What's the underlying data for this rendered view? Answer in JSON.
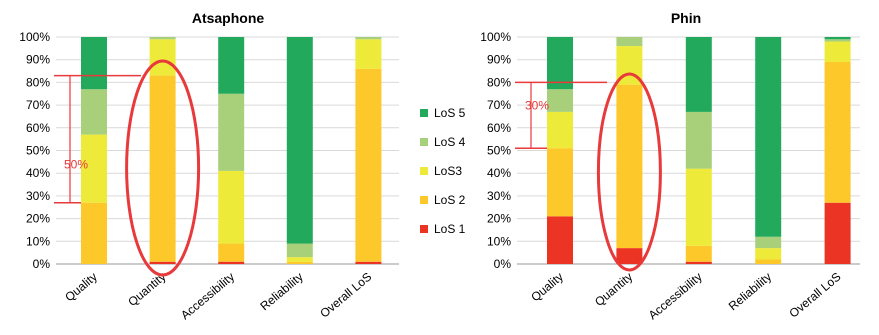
{
  "colors": {
    "los5": "#22a95b",
    "los4": "#a8d07a",
    "los3": "#eeea3a",
    "los2": "#fdc82a",
    "los1": "#ec3424",
    "grid": "#d9d9d9",
    "axis": "#999999",
    "annotation": "#e8393b"
  },
  "legend": {
    "placement": "between-charts",
    "items": [
      {
        "key": "los5",
        "label": "LoS 5"
      },
      {
        "key": "los4",
        "label": "LoS 4"
      },
      {
        "key": "los3",
        "label": "LoS3"
      },
      {
        "key": "los2",
        "label": "LoS 2"
      },
      {
        "key": "los1",
        "label": "LoS 1"
      }
    ]
  },
  "chart_data": [
    {
      "type": "bar",
      "stacked": true,
      "title": "Atsaphone",
      "categories": [
        "Quality",
        "Quantity",
        "Accessibility",
        "Reliability",
        "Overall LoS"
      ],
      "yticks": [
        "0%",
        "10%",
        "20%",
        "30%",
        "40%",
        "50%",
        "60%",
        "70%",
        "80%",
        "90%",
        "100%"
      ],
      "ylim": [
        0,
        100
      ],
      "series": [
        {
          "name": "LoS 1",
          "key": "los1",
          "values": [
            0,
            1,
            1,
            0,
            1
          ]
        },
        {
          "name": "LoS 2",
          "key": "los2",
          "values": [
            27,
            82,
            8,
            1,
            85
          ]
        },
        {
          "name": "LoS3",
          "key": "los3",
          "values": [
            30,
            16,
            32,
            2,
            13
          ]
        },
        {
          "name": "LoS 4",
          "key": "los4",
          "values": [
            20,
            1,
            34,
            6,
            1
          ]
        },
        {
          "name": "LoS 5",
          "key": "los5",
          "values": [
            23,
            0,
            25,
            91,
            0
          ]
        }
      ],
      "annotations": {
        "bracket_label": "50%",
        "bracket_from": 27,
        "bracket_to": 83,
        "circled_category": "Quantity"
      }
    },
    {
      "type": "bar",
      "stacked": true,
      "title": "Phin",
      "categories": [
        "Quality",
        "Quantity",
        "Accessibility",
        "Reliability",
        "Overall LoS"
      ],
      "yticks": [
        "0%",
        "10%",
        "20%",
        "30%",
        "40%",
        "50%",
        "60%",
        "70%",
        "80%",
        "90%",
        "100%"
      ],
      "ylim": [
        0,
        100
      ],
      "series": [
        {
          "name": "LoS 1",
          "key": "los1",
          "values": [
            21,
            7,
            1,
            0,
            27
          ]
        },
        {
          "name": "LoS 2",
          "key": "los2",
          "values": [
            30,
            72,
            7,
            2,
            62
          ]
        },
        {
          "name": "LoS3",
          "key": "los3",
          "values": [
            16,
            17,
            34,
            5,
            9
          ]
        },
        {
          "name": "LoS 4",
          "key": "los4",
          "values": [
            10,
            4,
            25,
            5,
            1
          ]
        },
        {
          "name": "LoS 5",
          "key": "los5",
          "values": [
            23,
            0,
            33,
            88,
            1
          ]
        }
      ],
      "annotations": {
        "bracket_label": "30%",
        "bracket_from": 51,
        "bracket_to": 80,
        "circled_category": "Quantity"
      }
    }
  ]
}
